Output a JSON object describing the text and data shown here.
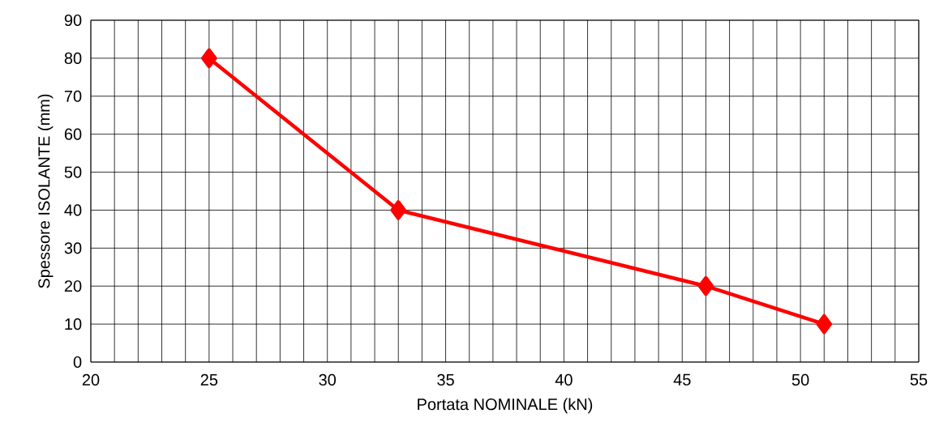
{
  "chart_data": {
    "type": "line",
    "xlabel": "Portata NOMINALE (kN)",
    "ylabel": "Spessore ISOLANTE (mm)",
    "x": [
      25,
      33,
      46,
      51
    ],
    "series": [
      {
        "color": "#ff0000",
        "values": [
          80,
          40,
          20,
          10
        ]
      }
    ],
    "marker": "diamond",
    "line_style": "solid",
    "grid": true,
    "xlim": [
      20,
      55
    ],
    "ylim": [
      0,
      90
    ],
    "xticks": [
      20,
      {
        "value": 21,
        "label": null
      },
      {
        "value": 22,
        "label": null
      },
      {
        "value": 23,
        "label": null
      },
      {
        "value": 24,
        "label": null
      },
      25,
      {
        "value": 26,
        "label": null
      },
      {
        "value": 27,
        "label": null
      },
      {
        "value": 28,
        "label": null
      },
      {
        "value": 29,
        "label": null
      },
      30,
      {
        "value": 31,
        "label": null
      },
      {
        "value": 32,
        "label": null
      },
      {
        "value": 33,
        "label": null
      },
      {
        "value": 34,
        "label": null
      },
      35,
      {
        "value": 36,
        "label": null
      },
      {
        "value": 37,
        "label": null
      },
      {
        "value": 38,
        "label": null
      },
      {
        "value": 39,
        "label": null
      },
      40,
      {
        "value": 41,
        "label": null
      },
      {
        "value": 42,
        "label": null
      },
      {
        "value": 43,
        "label": null
      },
      {
        "value": 44,
        "label": null
      },
      45,
      {
        "value": 46,
        "label": null
      },
      {
        "value": 47,
        "label": null
      },
      {
        "value": 48,
        "label": null
      },
      {
        "value": 49,
        "label": null
      },
      50,
      {
        "value": 51,
        "label": null
      },
      {
        "value": 52,
        "label": null
      },
      {
        "value": 53,
        "label": null
      },
      {
        "value": 54,
        "label": null
      },
      55
    ],
    "yticks": [
      0,
      10,
      20,
      30,
      40,
      50,
      60,
      70,
      80,
      90
    ]
  }
}
